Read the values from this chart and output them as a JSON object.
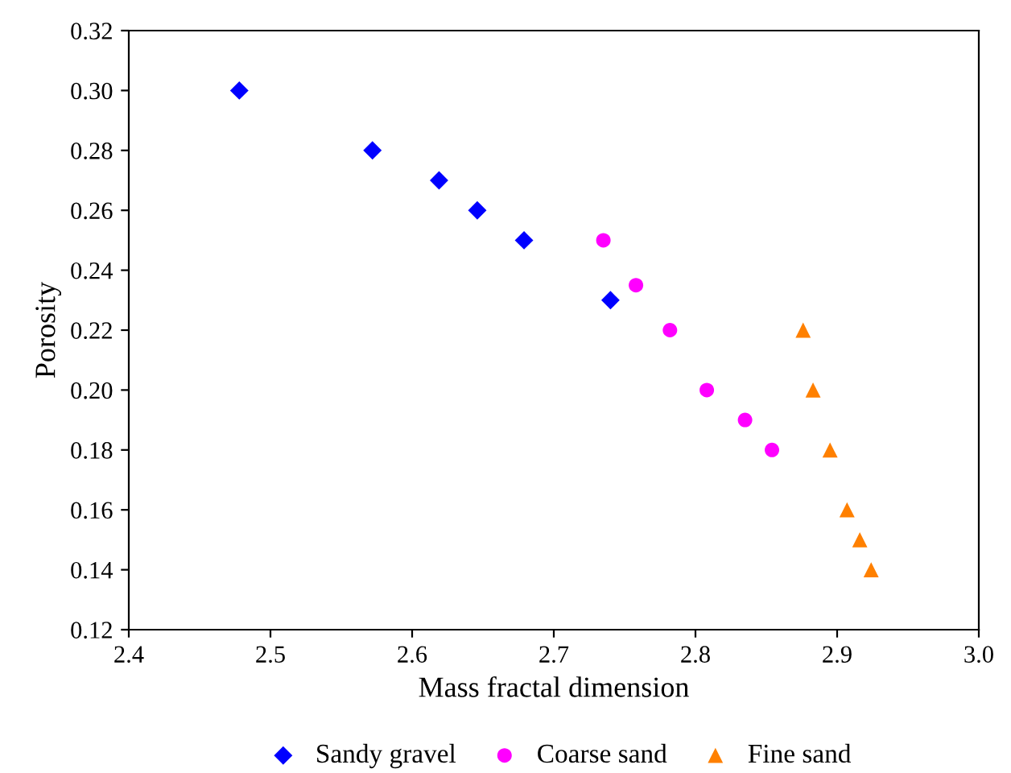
{
  "chart_data": {
    "type": "scatter",
    "xlabel": "Mass fractal dimension",
    "ylabel": "Porosity",
    "series": [
      {
        "name": "Sandy gravel",
        "color": "#0000ff",
        "marker": "diamond",
        "x": [
          2.478,
          2.572,
          2.619,
          2.646,
          2.679,
          2.74
        ],
        "values": [
          0.3,
          0.28,
          0.27,
          0.26,
          0.25,
          0.23
        ]
      },
      {
        "name": "Coarse sand",
        "color": "#ff00ff",
        "marker": "circle",
        "x": [
          2.735,
          2.758,
          2.782,
          2.808,
          2.835,
          2.854
        ],
        "values": [
          0.25,
          0.235,
          0.22,
          0.2,
          0.19,
          0.18
        ]
      },
      {
        "name": "Fine sand",
        "color": "#ff8000",
        "marker": "triangle",
        "x": [
          2.876,
          2.883,
          2.895,
          2.907,
          2.916,
          2.924
        ],
        "values": [
          0.22,
          0.2,
          0.18,
          0.16,
          0.15,
          0.14
        ]
      }
    ],
    "xlim": [
      2.4,
      3.0
    ],
    "xticks": [
      2.4,
      2.5,
      2.6,
      2.7,
      2.8,
      2.9,
      {
        "value": 3.0,
        "label": "3.0"
      }
    ],
    "ylim": [
      0.12,
      0.32
    ],
    "yticks": [
      0.12,
      0.14,
      0.16,
      0.18,
      {
        "value": 0.2,
        "label": "0.20"
      },
      0.22,
      0.24,
      0.26,
      0.28,
      {
        "value": 0.3,
        "label": "0.30"
      },
      0.32
    ],
    "grid": false,
    "legend": "bottom"
  }
}
